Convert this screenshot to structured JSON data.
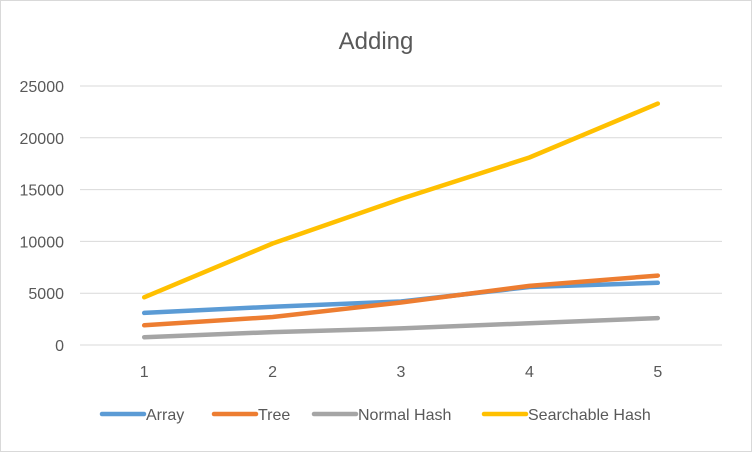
{
  "chart_data": {
    "type": "line",
    "title": "Adding",
    "categories": [
      "1",
      "2",
      "3",
      "4",
      "5"
    ],
    "ylim": [
      0,
      25000
    ],
    "yticks": [
      0,
      5000,
      10000,
      15000,
      20000,
      25000
    ],
    "grid": true,
    "legend": "bottom",
    "xlabel": "",
    "ylabel": "",
    "series": [
      {
        "name": "Array",
        "color": "#5b9bd5",
        "values": [
          3100,
          3700,
          4200,
          5600,
          6000
        ]
      },
      {
        "name": "Tree",
        "color": "#ed7d31",
        "values": [
          1900,
          2700,
          4100,
          5700,
          6700
        ]
      },
      {
        "name": "Normal Hash",
        "color": "#a5a5a5",
        "values": [
          750,
          1250,
          1600,
          2100,
          2600
        ]
      },
      {
        "name": "Searchable Hash",
        "color": "#ffc000",
        "values": [
          4600,
          9800,
          14100,
          18100,
          23300
        ]
      }
    ]
  }
}
